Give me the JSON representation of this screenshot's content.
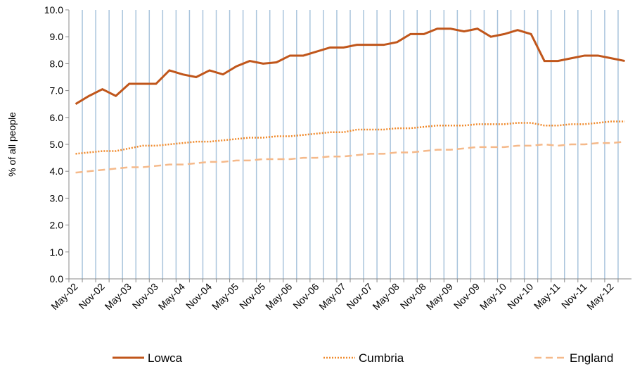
{
  "chart_data": {
    "type": "line",
    "y_label": "% of all people",
    "categories": [
      "May-02",
      null,
      "Nov-02",
      null,
      "May-03",
      null,
      "Nov-03",
      null,
      "May-04",
      null,
      "Nov-04",
      null,
      "May-05",
      null,
      "Nov-05",
      null,
      "May-06",
      null,
      "Nov-06",
      null,
      "May-07",
      null,
      "Nov-07",
      null,
      "May-08",
      null,
      "Nov-08",
      null,
      "May-09",
      null,
      "Nov-09",
      null,
      "May-10",
      null,
      "Nov-10",
      null,
      "May-11",
      null,
      "Nov-11",
      null,
      "May-12",
      null
    ],
    "series": [
      {
        "name": "Lowca",
        "color": "#c0561b",
        "style": "solid",
        "values": [
          6.5,
          6.8,
          7.05,
          6.8,
          7.25,
          7.25,
          7.25,
          7.75,
          7.6,
          7.5,
          7.75,
          7.6,
          7.9,
          8.1,
          8.0,
          8.05,
          8.3,
          8.3,
          8.45,
          8.6,
          8.6,
          8.7,
          8.7,
          8.7,
          8.8,
          9.1,
          9.1,
          9.3,
          9.3,
          9.2,
          9.3,
          9.0,
          9.1,
          9.25,
          9.1,
          8.1,
          8.1,
          8.2,
          8.3,
          8.3,
          8.2,
          8.1
        ]
      },
      {
        "name": "Cumbria",
        "color": "#f08a2c",
        "style": "dotted",
        "values": [
          4.65,
          4.7,
          4.75,
          4.75,
          4.85,
          4.95,
          4.95,
          5.0,
          5.05,
          5.1,
          5.1,
          5.15,
          5.2,
          5.25,
          5.25,
          5.3,
          5.3,
          5.35,
          5.4,
          5.45,
          5.45,
          5.55,
          5.55,
          5.55,
          5.6,
          5.6,
          5.65,
          5.7,
          5.7,
          5.7,
          5.75,
          5.75,
          5.75,
          5.8,
          5.8,
          5.7,
          5.7,
          5.75,
          5.75,
          5.8,
          5.85,
          5.85
        ]
      },
      {
        "name": "England",
        "color": "#f5b98a",
        "style": "dashed",
        "values": [
          3.95,
          4.0,
          4.05,
          4.1,
          4.15,
          4.15,
          4.2,
          4.25,
          4.25,
          4.3,
          4.35,
          4.35,
          4.4,
          4.4,
          4.45,
          4.45,
          4.45,
          4.5,
          4.5,
          4.55,
          4.55,
          4.6,
          4.65,
          4.65,
          4.7,
          4.7,
          4.75,
          4.8,
          4.8,
          4.85,
          4.9,
          4.9,
          4.9,
          4.95,
          4.95,
          5.0,
          4.95,
          5.0,
          5.0,
          5.05,
          5.05,
          5.1
        ]
      }
    ],
    "ylim": [
      0,
      10
    ],
    "yticks": [
      {
        "value": 0,
        "label": "0.0"
      },
      {
        "value": 1,
        "label": "1.0"
      },
      {
        "value": 2,
        "label": "2.0"
      },
      {
        "value": 3,
        "label": "3.0"
      },
      {
        "value": 4,
        "label": "4.0"
      },
      {
        "value": 5,
        "label": "5.0"
      },
      {
        "value": 6,
        "label": "6.0"
      },
      {
        "value": 7,
        "label": "7.0"
      },
      {
        "value": 8,
        "label": "8.0"
      },
      {
        "value": 9,
        "label": "9.0"
      },
      {
        "value": 10,
        "label": "10.0"
      }
    ],
    "x_grid": true,
    "grid_color": "#a9c4dc",
    "legend": "bottom"
  }
}
